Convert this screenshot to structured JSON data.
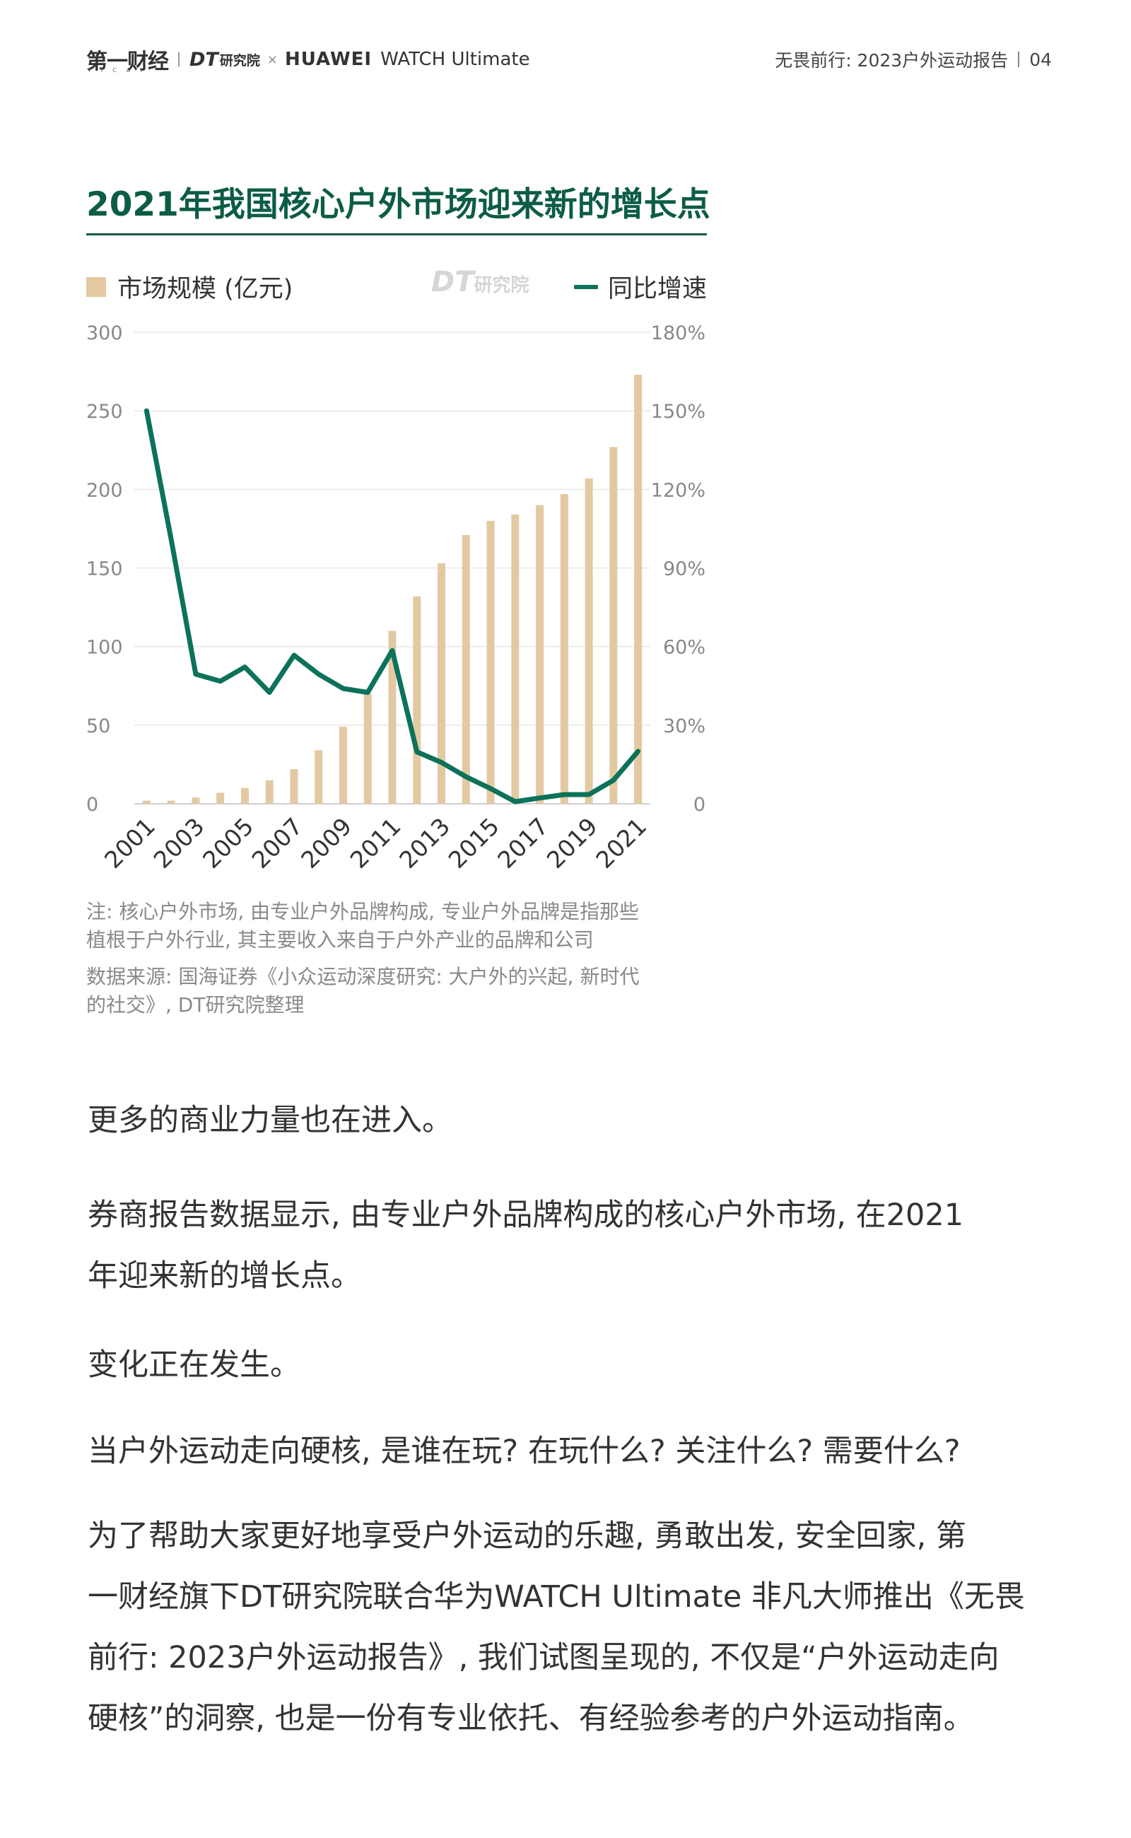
{
  "header": {
    "logo_yicai": "第一财经",
    "logo_yicai_sub": "YICAI",
    "logo_dt": "DT",
    "logo_dt_cn": "研究院",
    "x_mark": "×",
    "huawei": "HUAWEI",
    "watch": "WATCH Ultimate",
    "report_title": "无畏前行: 2023户外运动报告",
    "page_number": "04"
  },
  "chart_title": "2021年我国核心户外市场迎来新的增长点",
  "chart_data": {
    "type": "bar",
    "title": "2021年我国核心户外市场迎来新的增长点",
    "categories": [
      "2001",
      "2002",
      "2003",
      "2004",
      "2005",
      "2006",
      "2007",
      "2008",
      "2009",
      "2010",
      "2011",
      "2012",
      "2013",
      "2014",
      "2015",
      "2016",
      "2017",
      "2018",
      "2019",
      "2020",
      "2021"
    ],
    "x_tick_labels": [
      "2001",
      "2003",
      "2005",
      "2007",
      "2009",
      "2011",
      "2013",
      "2015",
      "2017",
      "2019",
      "2021"
    ],
    "series": [
      {
        "name": "市场规模 (亿元)",
        "type": "bar",
        "axis": "left",
        "color": "#e3c9a2",
        "values": [
          2,
          2,
          4,
          7,
          10,
          15,
          22,
          34,
          49,
          70,
          110,
          132,
          153,
          171,
          180,
          184,
          190,
          197,
          207,
          227,
          273
        ]
      },
      {
        "name": "同比增速",
        "type": "line",
        "axis": "right",
        "color": "#0c7259",
        "values": [
          150,
          101,
          49.5,
          46.8,
          52.2,
          42.5,
          56.7,
          49.5,
          44.0,
          42.5,
          58.5,
          19.8,
          15.8,
          10.3,
          5.8,
          0.8,
          2.2,
          3.5,
          3.5,
          9.0,
          20.0
        ]
      }
    ],
    "left_axis": {
      "ylim": [
        0,
        300
      ],
      "ticks": [
        0,
        50,
        100,
        150,
        200,
        250,
        300
      ],
      "tick_labels": [
        "0",
        "50",
        "100",
        "150",
        "200",
        "250",
        "300"
      ]
    },
    "right_axis": {
      "ylim": [
        0,
        180
      ],
      "ticks": [
        0,
        30,
        60,
        90,
        120,
        150,
        180
      ],
      "tick_labels": [
        "0",
        "30%",
        "60%",
        "90%",
        "120%",
        "150%",
        "180%"
      ]
    },
    "grid": true,
    "legend_position": "top"
  },
  "legend": {
    "bar_label": "市场规模 (亿元)",
    "line_label": "同比增速",
    "watermark_dt": "DT",
    "watermark_cn": "研究院"
  },
  "notes": {
    "note_line1": "注: 核心户外市场, 由专业户外品牌构成, 专业户外品牌是指那些",
    "note_line2": "植根于户外行业, 其主要收入来自于户外产业的品牌和公司",
    "source_line1": "数据来源: 国海证券《小众运动深度研究: 大户外的兴起, 新时代",
    "source_line2": "的社交》, DT研究院整理"
  },
  "body": {
    "p1": "更多的商业力量也在进入。",
    "p2_line1": "券商报告数据显示, 由专业户外品牌构成的核心户外市场, 在2021",
    "p2_line2": "年迎来新的增长点。",
    "p3": "变化正在发生。",
    "p4": "当户外运动走向硬核, 是谁在玩? 在玩什么? 关注什么? 需要什么?",
    "p5_line1": "为了帮助大家更好地享受户外运动的乐趣, 勇敢出发, 安全回家, 第",
    "p5_line2": "一财经旗下DT研究院联合华为WATCH Ultimate 非凡大师推出《无畏",
    "p5_line3": "前行: 2023户外运动报告》, 我们试图呈现的, 不仅是“户外运动走向",
    "p5_line4": "硬核”的洞察, 也是一份有专业依托、有经验参考的户外运动指南。"
  }
}
